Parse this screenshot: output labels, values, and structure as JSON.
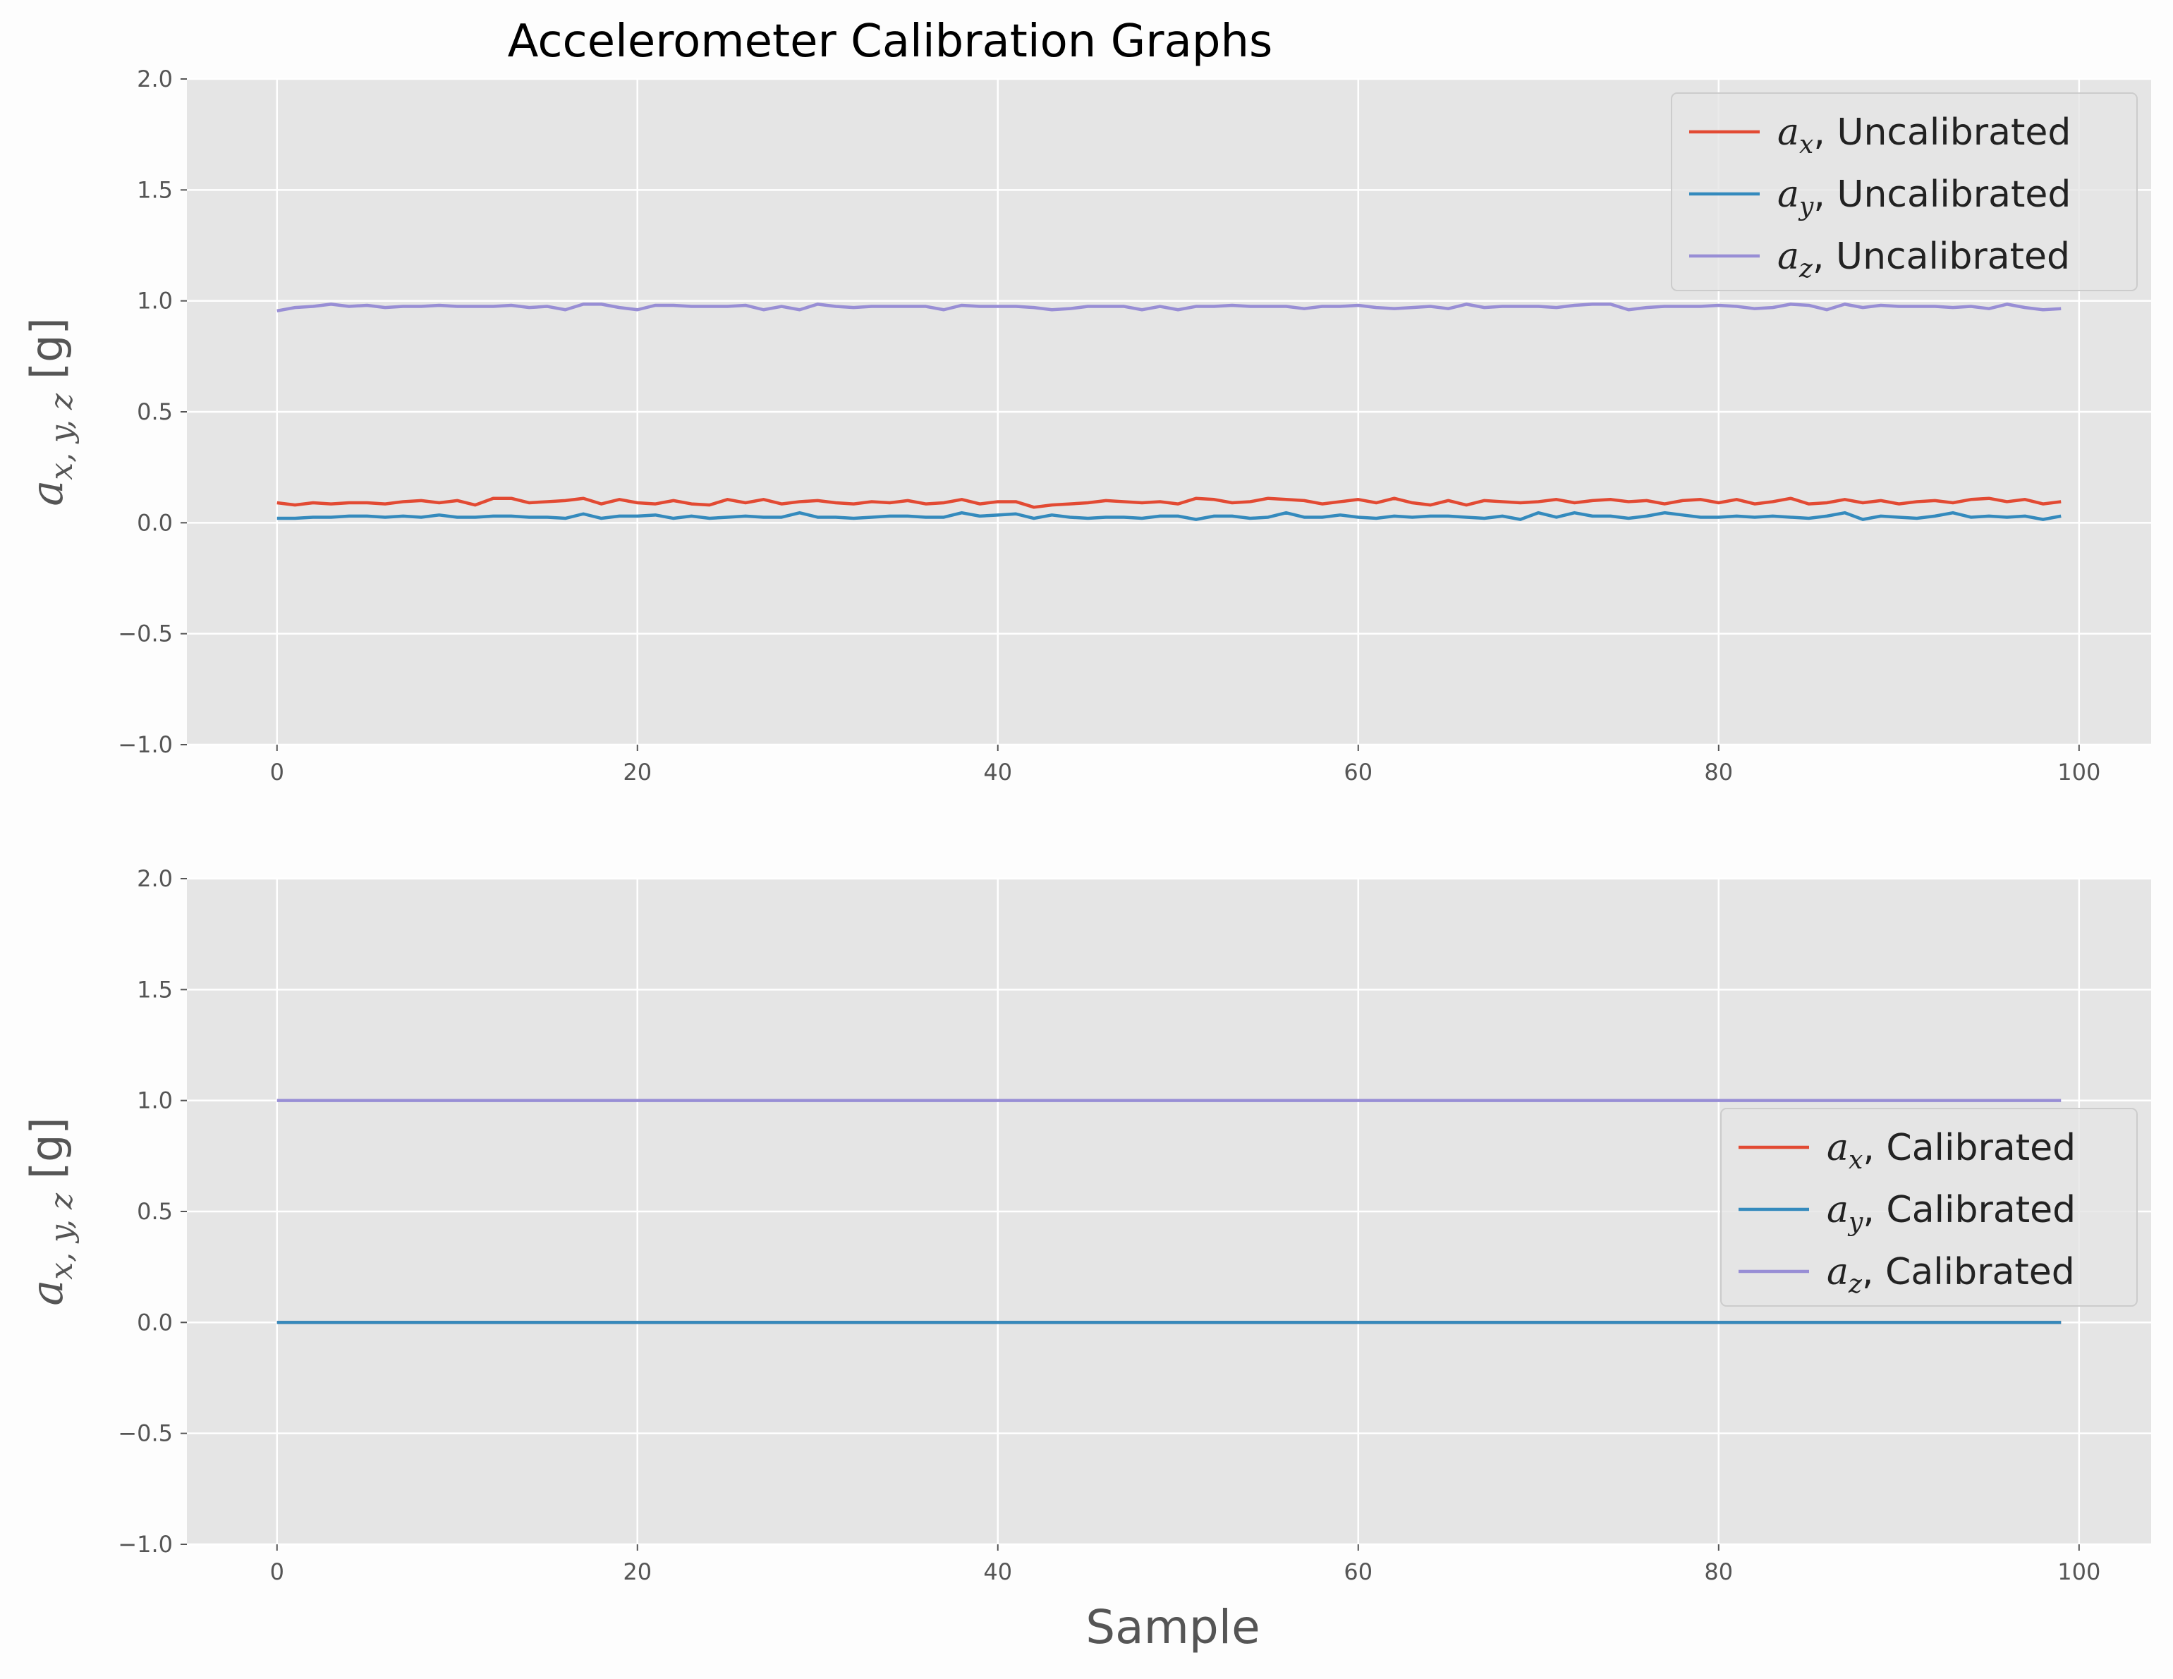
{
  "title": "Accelerometer Calibration Graphs",
  "xlabel": "Sample",
  "ylabel_html": "a",
  "ylabel_sub": "x, y, z",
  "ylabel_unit": " [g]",
  "colors": {
    "background": "#e5e5e5",
    "grid": "#ffffff",
    "ax": "#e24a33",
    "ay": "#348abd",
    "az": "#988ed5"
  },
  "chart_data": [
    {
      "type": "line",
      "xlim": [
        -5,
        104
      ],
      "ylim": [
        -1.0,
        2.0
      ],
      "xticks": [
        0,
        20,
        40,
        60,
        80,
        100
      ],
      "yticks": [
        -1.0,
        -0.5,
        0.0,
        0.5,
        1.0,
        1.5,
        2.0
      ],
      "ytick_labels": [
        "−1.0",
        "−0.5",
        "0.0",
        "0.5",
        "1.0",
        "1.5",
        "2.0"
      ],
      "grid": true,
      "legend": "upper right",
      "series": [
        {
          "name": "a_x, Uncalibrated",
          "legend_var": "a",
          "legend_sub": "x",
          "legend_suffix": ", Uncalibrated",
          "color_key": "ax",
          "values": [
            0.09,
            0.08,
            0.09,
            0.085,
            0.09,
            0.09,
            0.085,
            0.095,
            0.1,
            0.09,
            0.1,
            0.08,
            0.11,
            0.11,
            0.09,
            0.095,
            0.1,
            0.11,
            0.085,
            0.105,
            0.09,
            0.085,
            0.1,
            0.085,
            0.08,
            0.105,
            0.09,
            0.105,
            0.085,
            0.095,
            0.1,
            0.09,
            0.085,
            0.095,
            0.09,
            0.1,
            0.085,
            0.09,
            0.105,
            0.085,
            0.095,
            0.095,
            0.07,
            0.08,
            0.085,
            0.09,
            0.1,
            0.095,
            0.09,
            0.095,
            0.085,
            0.11,
            0.105,
            0.09,
            0.095,
            0.11,
            0.105,
            0.1,
            0.085,
            0.095,
            0.105,
            0.09,
            0.11,
            0.09,
            0.08,
            0.1,
            0.08,
            0.1,
            0.095,
            0.09,
            0.095,
            0.105,
            0.09,
            0.1,
            0.105,
            0.095,
            0.1,
            0.085,
            0.1,
            0.105,
            0.09,
            0.105,
            0.085,
            0.095,
            0.11,
            0.085,
            0.09,
            0.105,
            0.09,
            0.1,
            0.085,
            0.095,
            0.1,
            0.09,
            0.105,
            0.11,
            0.095,
            0.105,
            0.085,
            0.095
          ]
        },
        {
          "name": "a_y, Uncalibrated",
          "legend_var": "a",
          "legend_sub": "y",
          "legend_suffix": ", Uncalibrated",
          "color_key": "ay",
          "values": [
            0.02,
            0.02,
            0.025,
            0.025,
            0.03,
            0.03,
            0.025,
            0.03,
            0.025,
            0.035,
            0.025,
            0.025,
            0.03,
            0.03,
            0.025,
            0.025,
            0.02,
            0.04,
            0.02,
            0.03,
            0.03,
            0.035,
            0.02,
            0.03,
            0.02,
            0.025,
            0.03,
            0.025,
            0.025,
            0.045,
            0.025,
            0.025,
            0.02,
            0.025,
            0.03,
            0.03,
            0.025,
            0.025,
            0.045,
            0.03,
            0.035,
            0.04,
            0.02,
            0.035,
            0.025,
            0.02,
            0.025,
            0.025,
            0.02,
            0.03,
            0.03,
            0.015,
            0.03,
            0.03,
            0.02,
            0.025,
            0.045,
            0.025,
            0.025,
            0.035,
            0.025,
            0.02,
            0.03,
            0.025,
            0.03,
            0.03,
            0.025,
            0.02,
            0.03,
            0.015,
            0.045,
            0.025,
            0.045,
            0.03,
            0.03,
            0.02,
            0.03,
            0.045,
            0.035,
            0.025,
            0.025,
            0.03,
            0.025,
            0.03,
            0.025,
            0.02,
            0.03,
            0.045,
            0.015,
            0.03,
            0.025,
            0.02,
            0.03,
            0.045,
            0.025,
            0.03,
            0.025,
            0.03,
            0.015,
            0.03
          ]
        },
        {
          "name": "a_z, Uncalibrated",
          "legend_var": "a",
          "legend_sub": "z",
          "legend_suffix": ", Uncalibrated",
          "color_key": "az",
          "values": [
            0.955,
            0.97,
            0.975,
            0.985,
            0.975,
            0.98,
            0.97,
            0.975,
            0.975,
            0.98,
            0.975,
            0.975,
            0.975,
            0.98,
            0.97,
            0.975,
            0.96,
            0.985,
            0.985,
            0.97,
            0.96,
            0.98,
            0.98,
            0.975,
            0.975,
            0.975,
            0.98,
            0.96,
            0.975,
            0.96,
            0.985,
            0.975,
            0.97,
            0.975,
            0.975,
            0.975,
            0.975,
            0.96,
            0.98,
            0.975,
            0.975,
            0.975,
            0.97,
            0.96,
            0.965,
            0.975,
            0.975,
            0.975,
            0.96,
            0.975,
            0.96,
            0.975,
            0.975,
            0.98,
            0.975,
            0.975,
            0.975,
            0.965,
            0.975,
            0.975,
            0.98,
            0.97,
            0.965,
            0.97,
            0.975,
            0.965,
            0.985,
            0.97,
            0.975,
            0.975,
            0.975,
            0.97,
            0.98,
            0.985,
            0.985,
            0.96,
            0.97,
            0.975,
            0.975,
            0.975,
            0.98,
            0.975,
            0.965,
            0.97,
            0.985,
            0.98,
            0.96,
            0.985,
            0.97,
            0.98,
            0.975,
            0.975,
            0.975,
            0.97,
            0.975,
            0.965,
            0.985,
            0.97,
            0.96,
            0.965
          ]
        }
      ]
    },
    {
      "type": "line",
      "xlim": [
        -5,
        104
      ],
      "ylim": [
        -1.0,
        2.0
      ],
      "xticks": [
        0,
        20,
        40,
        60,
        80,
        100
      ],
      "yticks": [
        -1.0,
        -0.5,
        0.0,
        0.5,
        1.0,
        1.5,
        2.0
      ],
      "ytick_labels": [
        "−1.0",
        "−0.5",
        "0.0",
        "0.5",
        "1.0",
        "1.5",
        "2.0"
      ],
      "grid": true,
      "legend": "center right",
      "series": [
        {
          "name": "a_x, Calibrated",
          "legend_var": "a",
          "legend_sub": "x",
          "legend_suffix": ", Calibrated",
          "color_key": "ax",
          "constant": 0.0,
          "x_range": [
            0,
            99
          ]
        },
        {
          "name": "a_y, Calibrated",
          "legend_var": "a",
          "legend_sub": "y",
          "legend_suffix": ", Calibrated",
          "color_key": "ay",
          "constant": 0.0,
          "x_range": [
            0,
            99
          ]
        },
        {
          "name": "a_z, Calibrated",
          "legend_var": "a",
          "legend_sub": "z",
          "legend_suffix": ", Calibrated",
          "color_key": "az",
          "constant": 1.0,
          "x_range": [
            0,
            99
          ]
        }
      ]
    }
  ]
}
